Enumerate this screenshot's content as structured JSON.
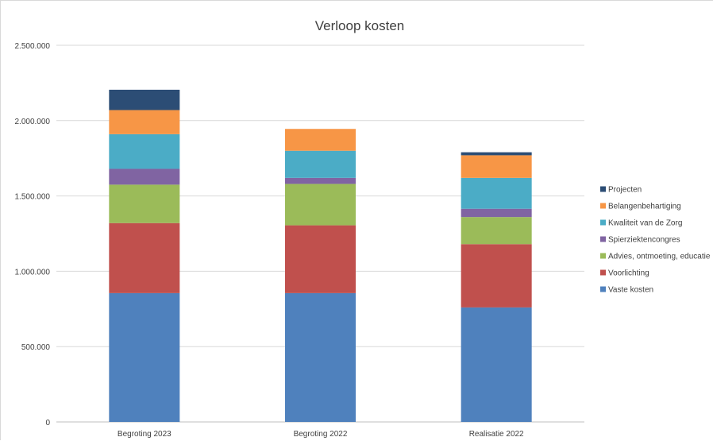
{
  "chart_data": {
    "type": "bar",
    "stacked": true,
    "title": "Verloop kosten",
    "xlabel": "",
    "ylabel": "",
    "ylim": [
      0,
      2500000
    ],
    "yticks": [
      0,
      500000,
      1000000,
      1500000,
      2000000,
      2500000
    ],
    "ytick_labels": [
      "0",
      "500.000",
      "1.000.000",
      "1.500.000",
      "2.000.000",
      "2.500.000"
    ],
    "grid": true,
    "legend_position": "right",
    "categories": [
      "Begroting 2023",
      "Begroting 2022",
      "Realisatie 2022"
    ],
    "series": [
      {
        "name": "Vaste kosten",
        "color": "#4f81bd",
        "values": [
          855000,
          855000,
          760000
        ]
      },
      {
        "name": "Voorlichting",
        "color": "#c0504d",
        "values": [
          465000,
          450000,
          420000
        ]
      },
      {
        "name": "Advies, ontmoeting, educatie",
        "color": "#9bbb59",
        "values": [
          255000,
          275000,
          180000
        ]
      },
      {
        "name": "Spierziektencongres",
        "color": "#8064a2",
        "values": [
          105000,
          40000,
          55000
        ]
      },
      {
        "name": "Kwaliteit van de Zorg",
        "color": "#4bacc6",
        "values": [
          230000,
          180000,
          205000
        ]
      },
      {
        "name": "Belangenbehartiging",
        "color": "#f79646",
        "values": [
          160000,
          145000,
          150000
        ]
      },
      {
        "name": "Projecten",
        "color": "#2c4d75",
        "values": [
          135000,
          0,
          20000
        ]
      }
    ]
  }
}
